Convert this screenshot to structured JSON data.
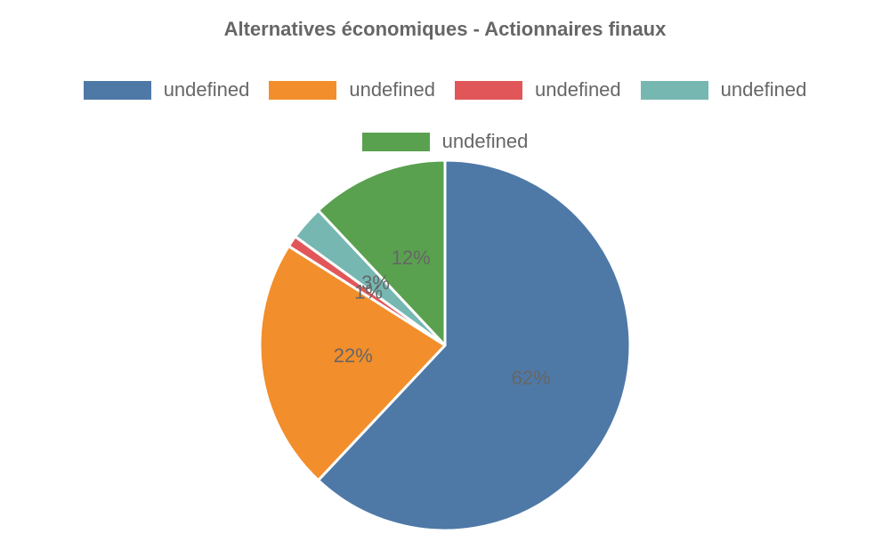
{
  "chart_data": {
    "type": "pie",
    "title": "Alternatives économiques - Actionnaires finaux",
    "categories": [
      "undefined",
      "undefined",
      "undefined",
      "undefined",
      "undefined"
    ],
    "values": [
      62,
      22,
      1,
      3,
      12
    ],
    "value_labels": [
      "62%",
      "22%",
      "1%",
      "3%",
      "12%"
    ],
    "colors": [
      "#4e79a7",
      "#f28e2b",
      "#e15759",
      "#76b7b2",
      "#59a14f"
    ],
    "legend_position": "top"
  }
}
